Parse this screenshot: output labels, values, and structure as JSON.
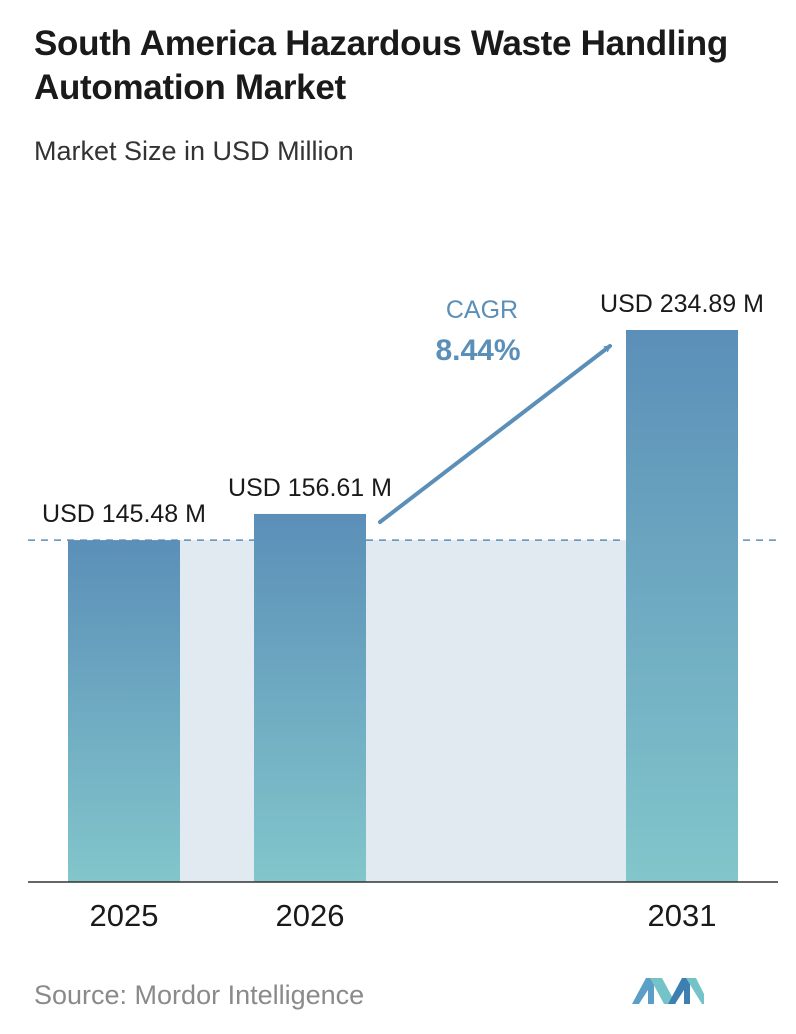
{
  "title": "South America Hazardous Waste Handling Automation Market",
  "subtitle": "Market Size in USD Million",
  "source": "Source: Mordor Intelligence",
  "colors": {
    "bar_top": "#5b8fb8",
    "bar_bottom": "#82c6cb",
    "band": "#e2eaf1",
    "baseline_dashed": "#5b8fb8",
    "arrow": "#5b8fb8",
    "cagr_label": "#5b8fb8"
  },
  "chart_data": {
    "type": "bar",
    "title": "South America Hazardous Waste Handling Automation Market",
    "subtitle": "Market Size in USD Million",
    "categories": [
      "2025",
      "2026",
      "2031"
    ],
    "values": [
      145.48,
      156.61,
      234.89
    ],
    "data_labels": [
      "USD 145.48 M",
      "USD 156.61 M",
      "USD 234.89 M"
    ],
    "cagr": {
      "label": "CAGR",
      "value": "8.44%"
    },
    "reference_line_value": 145.48,
    "xlabel": "",
    "ylabel": "",
    "grid": false,
    "legend": "none"
  }
}
